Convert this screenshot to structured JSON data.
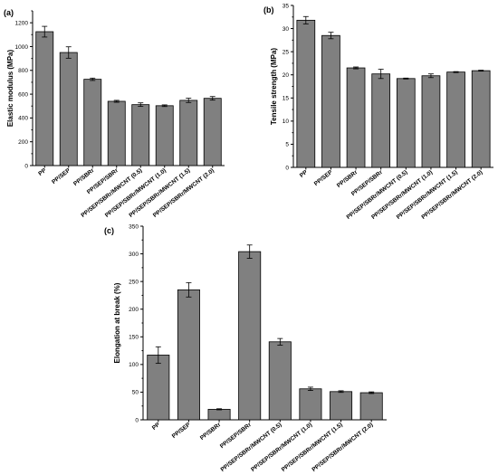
{
  "chart_data": [
    {
      "type": "bar",
      "panel": "(a)",
      "ylabel": "Elastic modulus (MPa)",
      "xlabel": "",
      "ylim": [
        0,
        1300
      ],
      "yticks": [
        0,
        200,
        400,
        600,
        800,
        1000,
        1200
      ],
      "categories": [
        "PP",
        "PP/SEP",
        "PP/SBRr",
        "PP/SEP/SBRr",
        "PP/SEP/SBRr/MWCNT (0.5)",
        "PP/SEP/SBRr/MWCNT (1.0)",
        "PP/SEP/SBRr/MWCNT (1.5)",
        "PP/SEP/SBRr/MWCNT (2.0)"
      ],
      "values": [
        1125,
        950,
        725,
        540,
        512,
        503,
        548,
        565
      ],
      "errors": [
        45,
        48,
        10,
        8,
        15,
        7,
        18,
        15
      ],
      "bar_color": "#808080"
    },
    {
      "type": "bar",
      "panel": "(b)",
      "ylabel": "Tensile strength (MPa)",
      "xlabel": "",
      "ylim": [
        0,
        35
      ],
      "yticks": [
        0,
        5,
        10,
        15,
        20,
        25,
        30,
        35
      ],
      "categories": [
        "PP",
        "PP/SEP",
        "PP/SBRr",
        "PP/SEP/SBRr",
        "PP/SEP/SBRr/MWCNT (0.5)",
        "PP/SEP/SBRr/MWCNT (1.0)",
        "PP/SEP/SBRr/MWCNT (1.5)",
        "PP/SEP/SBRr/MWCNT (2.0)"
      ],
      "values": [
        31.8,
        28.5,
        21.5,
        20.2,
        19.2,
        19.8,
        20.6,
        20.9
      ],
      "errors": [
        0.8,
        0.7,
        0.2,
        1.0,
        0.1,
        0.4,
        0.1,
        0.1
      ],
      "bar_color": "#808080"
    },
    {
      "type": "bar",
      "panel": "(c)",
      "ylabel": "Elongation at break (%)",
      "xlabel": "",
      "ylim": [
        0,
        350
      ],
      "yticks": [
        0,
        50,
        100,
        150,
        200,
        250,
        300,
        350
      ],
      "categories": [
        "PP",
        "PP/SEP",
        "PP/SBRr",
        "PP/SEP/SBRr",
        "PP/SEP/SBRr/MWCNT (0.5)",
        "PP/SEP/SBRr/MWCNT (1.0)",
        "PP/SEP/SBRr/MWCNT (1.5)",
        "PP/SEP/SBRr/MWCNT (2.0)"
      ],
      "values": [
        117,
        235,
        19,
        304,
        141,
        56,
        51,
        49
      ],
      "errors": [
        15,
        13,
        1,
        12,
        6,
        3,
        1.5,
        1.5
      ],
      "bar_color": "#808080"
    }
  ]
}
